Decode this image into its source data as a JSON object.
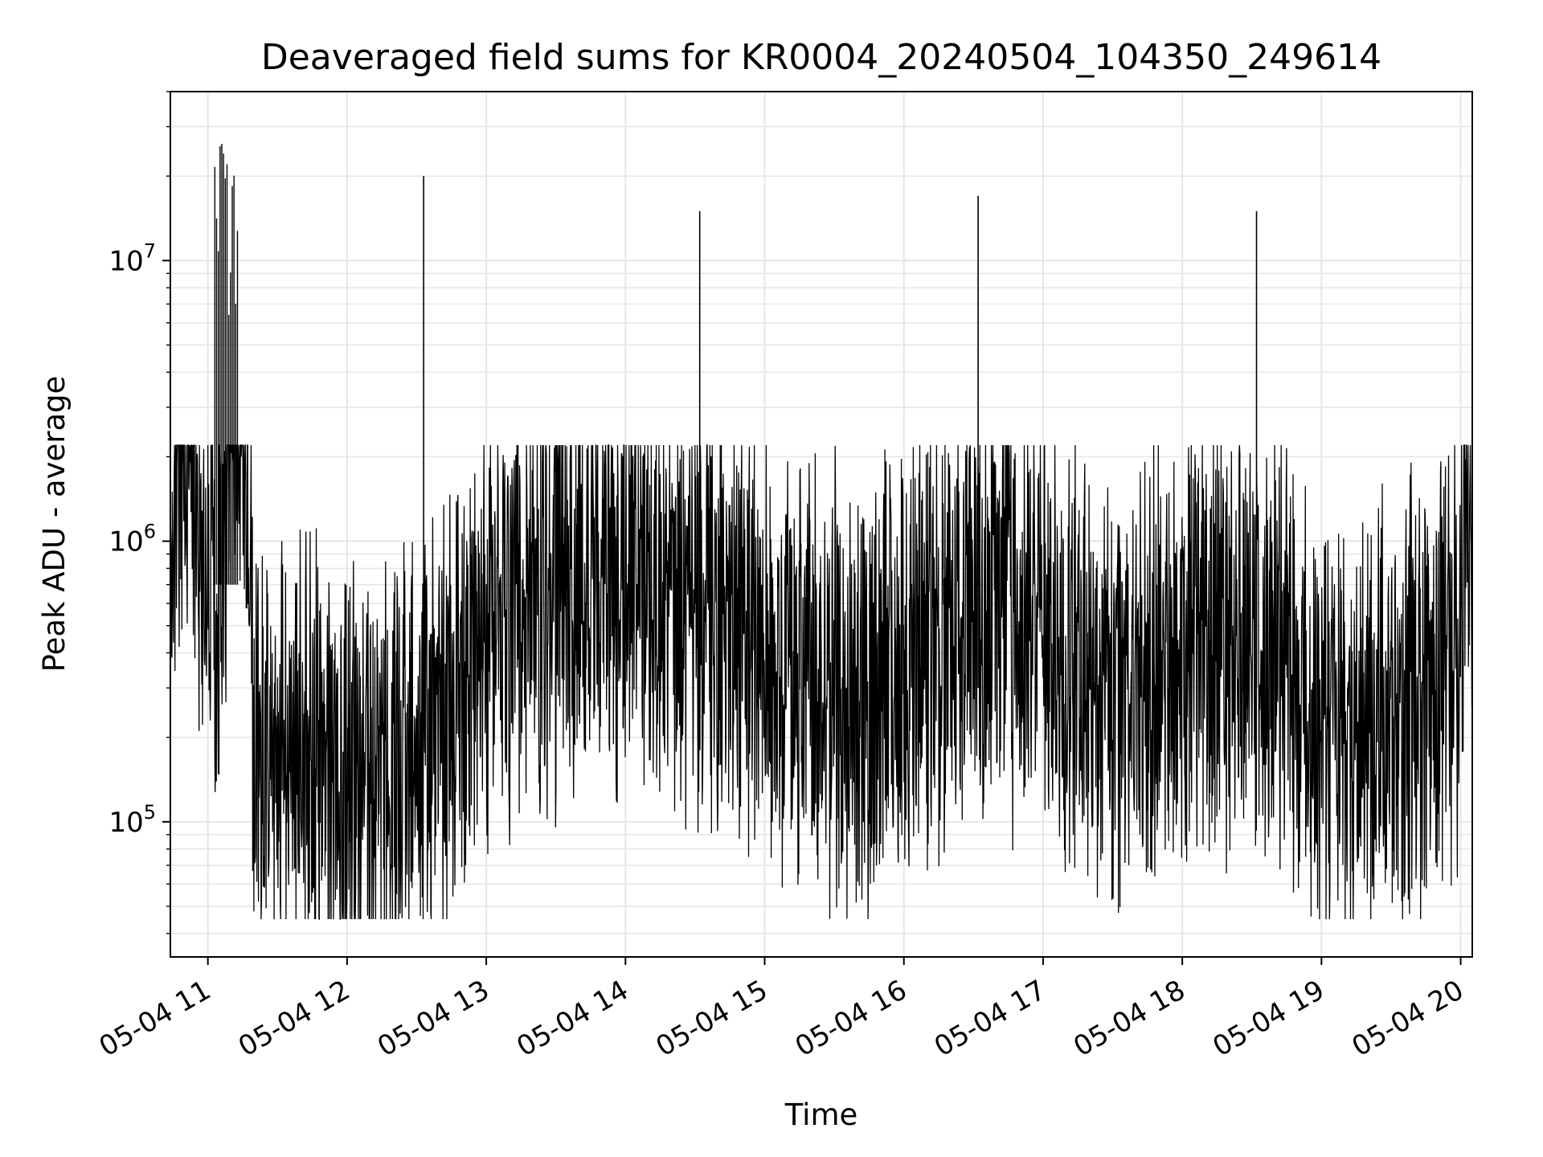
{
  "chart_data": {
    "type": "line",
    "title": "Deaveraged field sums for KR0004_20240504_104350_249614",
    "xlabel": "Time",
    "ylabel": "Peak ADU - average",
    "yscale": "log",
    "xlim": [
      "2024-05-04 10:43:50",
      "2024-05-04 20:05:00"
    ],
    "ylim": [
      33000,
      40000000
    ],
    "grid": true,
    "line_color": "#000000",
    "grid_color": "#e6e6e6",
    "xticks": [
      "05-04 11",
      "05-04 12",
      "05-04 13",
      "05-04 14",
      "05-04 15",
      "05-04 16",
      "05-04 17",
      "05-04 18",
      "05-04 19",
      "05-04 20"
    ],
    "yticks": [
      {
        "value": 100000,
        "base": "10",
        "exp": "5"
      },
      {
        "value": 1000000,
        "base": "10",
        "exp": "6"
      },
      {
        "value": 10000000,
        "base": "10",
        "exp": "7"
      }
    ],
    "series": [
      {
        "name": "",
        "x": [
          "2024-05-04 10:44",
          "2024-05-04 10:50",
          "2024-05-04 10:55",
          "2024-05-04 11:00",
          "2024-05-04 11:05",
          "2024-05-04 11:10",
          "2024-05-04 11:15",
          "2024-05-04 11:20",
          "2024-05-04 11:30",
          "2024-05-04 11:45",
          "2024-05-04 12:00",
          "2024-05-04 12:15",
          "2024-05-04 12:30",
          "2024-05-04 12:33",
          "2024-05-04 12:45",
          "2024-05-04 13:00",
          "2024-05-04 13:15",
          "2024-05-04 13:30",
          "2024-05-04 13:45",
          "2024-05-04 14:00",
          "2024-05-04 14:15",
          "2024-05-04 14:32",
          "2024-05-04 14:45",
          "2024-05-04 15:00",
          "2024-05-04 15:15",
          "2024-05-04 15:30",
          "2024-05-04 15:45",
          "2024-05-04 16:00",
          "2024-05-04 16:15",
          "2024-05-04 16:32",
          "2024-05-04 16:45",
          "2024-05-04 17:00",
          "2024-05-04 17:15",
          "2024-05-04 17:30",
          "2024-05-04 17:45",
          "2024-05-04 18:00",
          "2024-05-04 18:15",
          "2024-05-04 18:32",
          "2024-05-04 18:45",
          "2024-05-04 19:00",
          "2024-05-04 19:15",
          "2024-05-04 19:30",
          "2024-05-04 19:45",
          "2024-05-04 20:00",
          "2024-05-04 20:04"
        ],
        "y": [
          1600000,
          1500000,
          1300000,
          500000,
          700000,
          3500000,
          3000000,
          250000,
          180000,
          160000,
          140000,
          130000,
          180000,
          20000000,
          250000,
          500000,
          600000,
          700000,
          800000,
          750000,
          600000,
          15000000,
          500000,
          400000,
          350000,
          300000,
          250000,
          400000,
          500000,
          17000000,
          600000,
          500000,
          400000,
          300000,
          350000,
          450000,
          500000,
          15000000,
          400000,
          180000,
          220000,
          250000,
          300000,
          500000,
          1400000
        ]
      }
    ]
  }
}
